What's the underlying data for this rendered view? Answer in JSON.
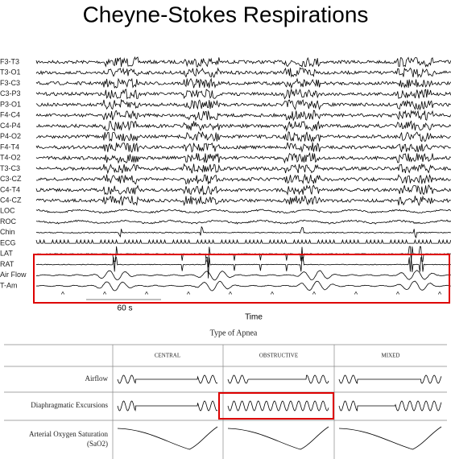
{
  "title": "Cheyne-Stokes Respirations",
  "channels": [
    "F3-T3",
    "T3-O1",
    "F3-C3",
    "C3-P3",
    "P3-O1",
    "F4-C4",
    "C4-P4",
    "P4-O2",
    "F4-T4",
    "T4-O2",
    "T3-C3",
    "C3-CZ",
    "C4-T4",
    "C4-CZ",
    "LOC",
    "ROC",
    "Chin",
    "ECG",
    "LAT",
    "RAT",
    "Air Flow",
    "T-Am"
  ],
  "scale_label": "60 s",
  "time_label": "Time",
  "table": {
    "title": "Type of Apnea",
    "columns": [
      "CENTRAL",
      "OBSTRUCTIVE",
      "MIXED"
    ],
    "rows": [
      "Airflow",
      "Diaphragmatic Excursions",
      "Arterial Oxygen Saturation"
    ],
    "row_note": "(SaO2)"
  }
}
